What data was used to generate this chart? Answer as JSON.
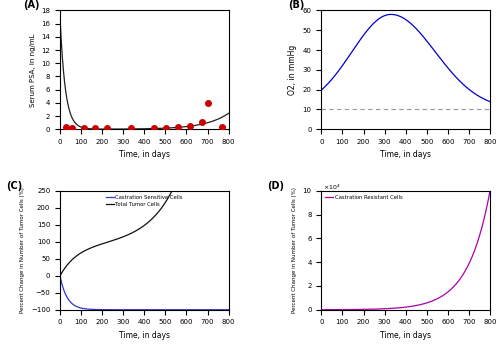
{
  "panel_A": {
    "label": "(A)",
    "ylabel": "Serum PSA, in ng/mL",
    "xlabel": "Time, in days",
    "xlim": [
      0,
      800
    ],
    "ylim": [
      0,
      18
    ],
    "yticks": [
      0,
      2,
      4,
      6,
      8,
      10,
      12,
      14,
      16,
      18
    ],
    "curve_color": "#222222",
    "data_points_x": [
      28,
      56,
      112,
      168,
      224,
      336,
      448,
      504,
      560,
      616,
      672,
      700,
      770
    ],
    "data_points_y": [
      0.3,
      0.12,
      0.15,
      0.18,
      0.15,
      0.2,
      0.25,
      0.22,
      0.35,
      0.55,
      1.05,
      4.0,
      0.4
    ],
    "dot_color": "#cc0000",
    "dot_size": 16
  },
  "panel_B": {
    "label": "(B)",
    "ylabel": "O2, in mmHg",
    "xlabel": "Time, in days",
    "xlim": [
      0,
      800
    ],
    "ylim": [
      0,
      60
    ],
    "yticks": [
      0,
      10,
      20,
      30,
      40,
      50,
      60
    ],
    "curve_color": "#0000cc",
    "dashed_y": 10,
    "dashed_color": "#999999",
    "peak_day": 330,
    "peak_val": 58.0,
    "start_val": 10.0,
    "sigma_rise": 185,
    "sigma_fall": 210
  },
  "panel_C": {
    "label": "(C)",
    "ylabel": "Percent Change in Number of Tumor Cells (%)",
    "xlabel": "Time, in days",
    "xlim": [
      0,
      800
    ],
    "ylim": [
      -100,
      250
    ],
    "yticks": [
      -100,
      -50,
      0,
      50,
      100,
      150,
      200,
      250
    ],
    "sensitive_color": "#3333cc",
    "total_color": "#111111",
    "legend_sensitive": "Castration Sensitive Cells",
    "legend_total": "Total Tumor Cells"
  },
  "panel_D": {
    "label": "(D)",
    "ylabel": "Percent Change in Number of Tumor Cells (%)",
    "xlabel": "Time, in days",
    "xlim": [
      0,
      800
    ],
    "ylim": [
      0,
      10
    ],
    "yticks": [
      0,
      2,
      4,
      6,
      8,
      10
    ],
    "curve_color": "#aa00aa",
    "legend_resistant": "Castration Resistant Cells",
    "scale_label": "x 10^4"
  }
}
